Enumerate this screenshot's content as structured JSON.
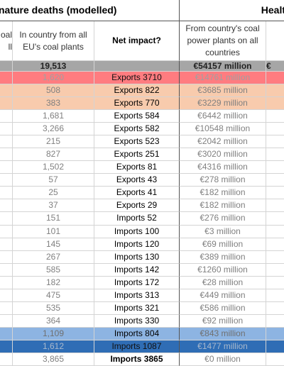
{
  "title_left": "nature deaths (modelled)",
  "title_right": "Healt",
  "headers": [
    "oal\nll",
    "In country from all EU's coal plants",
    "Net impact?",
    "From country's coal power plants on all countries",
    ""
  ],
  "totals": [
    "",
    "19,513",
    "",
    "€54157 million",
    "€"
  ],
  "rows": [
    {
      "color": "#ff7c80",
      "text": "#a0a0a0",
      "cells": [
        "1,620",
        "Exports 3710",
        "€14761 million"
      ]
    },
    {
      "color": "#f8cbad",
      "text": "#808080",
      "cells": [
        "508",
        "Exports 822",
        "€3685 million"
      ]
    },
    {
      "color": "#f8cbad",
      "text": "#808080",
      "cells": [
        "383",
        "Exports 770",
        "€3229 million"
      ]
    },
    {
      "color": "#ffffff",
      "text": "#808080",
      "cells": [
        "1,681",
        "Exports 584",
        "€6442 million"
      ]
    },
    {
      "color": "#ffffff",
      "text": "#808080",
      "cells": [
        "3,266",
        "Exports 582",
        "€10548 million"
      ]
    },
    {
      "color": "#ffffff",
      "text": "#808080",
      "cells": [
        "215",
        "Exports 523",
        "€2042 million"
      ]
    },
    {
      "color": "#ffffff",
      "text": "#808080",
      "cells": [
        "827",
        "Exports 251",
        "€3020 million"
      ]
    },
    {
      "color": "#ffffff",
      "text": "#808080",
      "cells": [
        "1,502",
        "Exports 81",
        "€4316 million"
      ]
    },
    {
      "color": "#ffffff",
      "text": "#808080",
      "cells": [
        "57",
        "Exports 43",
        "€278 million"
      ]
    },
    {
      "color": "#ffffff",
      "text": "#808080",
      "cells": [
        "25",
        "Exports 41",
        "€182 million"
      ]
    },
    {
      "color": "#ffffff",
      "text": "#808080",
      "cells": [
        "37",
        "Exports 29",
        "€182 million"
      ]
    },
    {
      "color": "#ffffff",
      "text": "#808080",
      "cells": [
        "151",
        "Imports 52",
        "€276 million"
      ]
    },
    {
      "color": "#ffffff",
      "text": "#808080",
      "cells": [
        "101",
        "Imports 100",
        "€3 million"
      ]
    },
    {
      "color": "#ffffff",
      "text": "#808080",
      "cells": [
        "145",
        "Imports 120",
        "€69 million"
      ]
    },
    {
      "color": "#ffffff",
      "text": "#808080",
      "cells": [
        "267",
        "Imports 130",
        "€389 million"
      ]
    },
    {
      "color": "#ffffff",
      "text": "#808080",
      "cells": [
        "585",
        "Imports 142",
        "€1260 million"
      ]
    },
    {
      "color": "#ffffff",
      "text": "#808080",
      "cells": [
        "182",
        "Imports 172",
        "€28 million"
      ]
    },
    {
      "color": "#ffffff",
      "text": "#808080",
      "cells": [
        "475",
        "Imports 313",
        "€449 million"
      ]
    },
    {
      "color": "#ffffff",
      "text": "#808080",
      "cells": [
        "535",
        "Imports 321",
        "€586 million"
      ]
    },
    {
      "color": "#ffffff",
      "text": "#808080",
      "cells": [
        "364",
        "Imports 330",
        "€92 million"
      ]
    },
    {
      "color": "#8db4e2",
      "text": "#707070",
      "cells": [
        "1,109",
        "Imports 804",
        "€843 million"
      ]
    },
    {
      "color": "#2f6db5",
      "text": "#a8b8cc",
      "cells": [
        "1,612",
        "Imports 1087",
        "€1477 million"
      ]
    },
    {
      "color": "#ffffff",
      "text": "#808080",
      "bold": true,
      "cells": [
        "3,865",
        "Imports 3865",
        "€0 million"
      ]
    }
  ]
}
